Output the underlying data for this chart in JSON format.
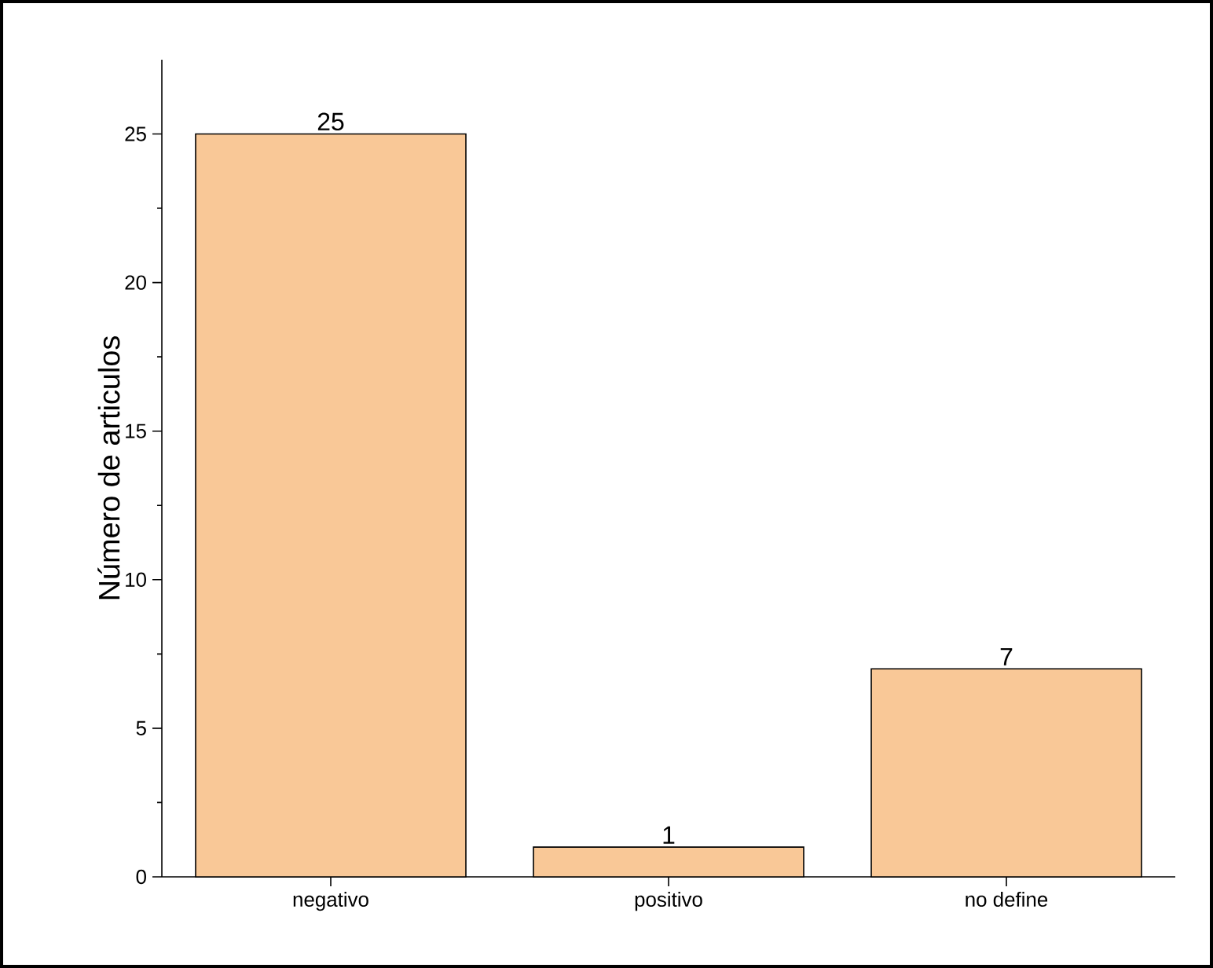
{
  "chart_data": {
    "type": "bar",
    "ylabel": "Número de articulos",
    "categories": [
      "negativo",
      "positivo",
      "no define"
    ],
    "values": [
      25,
      1,
      7
    ],
    "color": "#f9c897",
    "ylim": [
      0,
      27.5
    ],
    "yticks": [
      0,
      5,
      10,
      15,
      20,
      25
    ],
    "data_labels": true,
    "grid": false
  }
}
